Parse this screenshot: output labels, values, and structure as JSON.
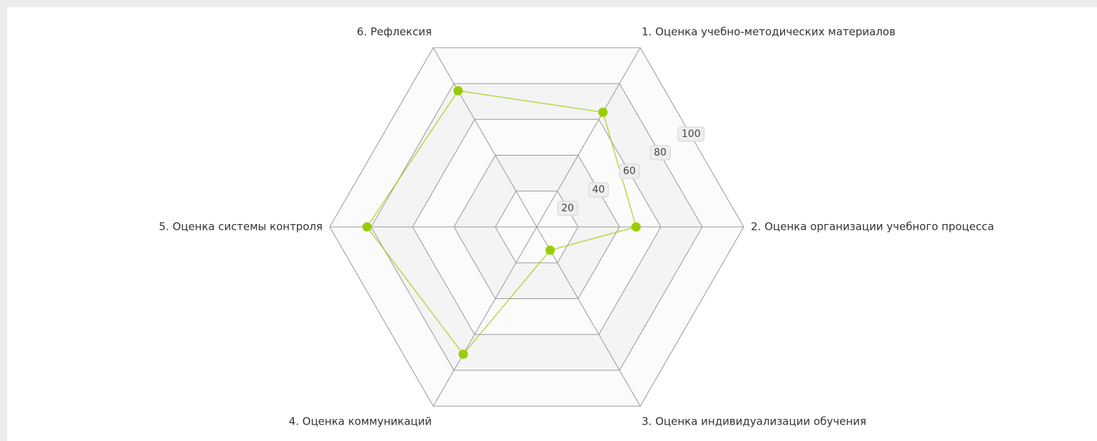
{
  "chart_data": {
    "type": "radar",
    "categories": [
      "1. Оценка учебно-методических материалов",
      "2. Оценка организации учебного процесса",
      "3. Оценка индивидуализации обучения",
      "4. Оценка коммуникаций",
      "5. Оценка системы контроля",
      "6. Рефлексия"
    ],
    "series": [
      {
        "color": "#99cc00",
        "values": [
          64,
          48,
          13,
          71,
          82,
          76
        ]
      }
    ],
    "ylim": [
      0,
      100
    ],
    "yticks": [
      20,
      40,
      60,
      80,
      100
    ],
    "grid": true
  }
}
